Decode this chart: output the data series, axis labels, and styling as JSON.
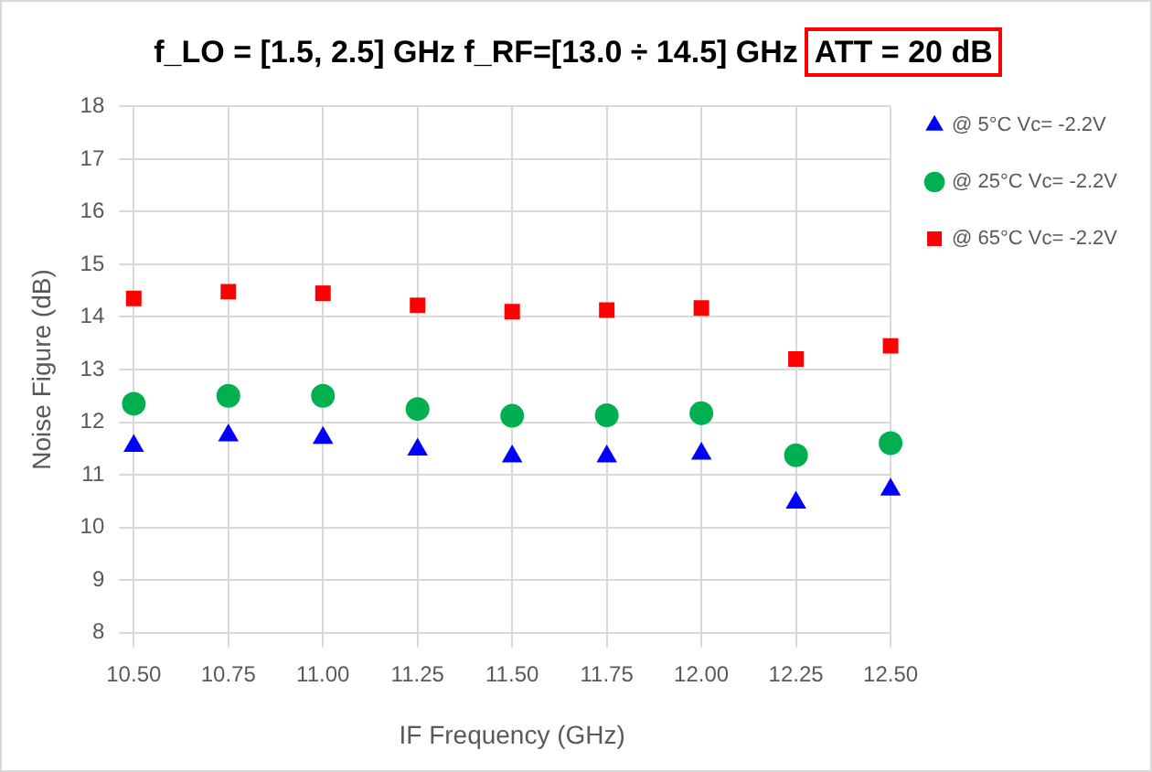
{
  "chart_data": {
    "type": "scatter",
    "title": "f_LO = [1.5, 2.5] GHz f_RF=[13.0 ÷ 14.5] GHz",
    "subtitle": "ATT = 20 dB",
    "xlabel": "IF Frequency (GHz)",
    "ylabel": "Noise Figure (dB)",
    "categories": [
      "10.50",
      "10.75",
      "11.00",
      "11.25",
      "11.50",
      "11.75",
      "12.00",
      "12.25",
      "12.50"
    ],
    "series": [
      {
        "name": "@ 5°C Vc= -2.2V",
        "color": "#0000ff",
        "marker": "triangle",
        "values": [
          11.55,
          11.75,
          11.7,
          11.48,
          11.35,
          11.35,
          11.4,
          10.47,
          10.72
        ]
      },
      {
        "name": "@ 25°C Vc= -2.2V",
        "color": "#00b050",
        "marker": "circle",
        "values": [
          12.35,
          12.5,
          12.5,
          12.25,
          12.12,
          12.13,
          12.17,
          11.37,
          11.6
        ]
      },
      {
        "name": "@ 65°C Vc= -2.2V",
        "color": "#ff0000",
        "marker": "square",
        "values": [
          14.35,
          14.48,
          14.45,
          14.22,
          14.1,
          14.13,
          14.17,
          13.2,
          13.45
        ]
      }
    ],
    "ylim": [
      8,
      18
    ],
    "yticks": [
      8,
      9,
      10,
      11,
      12,
      13,
      14,
      15,
      16,
      17,
      18
    ],
    "grid": true,
    "legend": "top right"
  }
}
